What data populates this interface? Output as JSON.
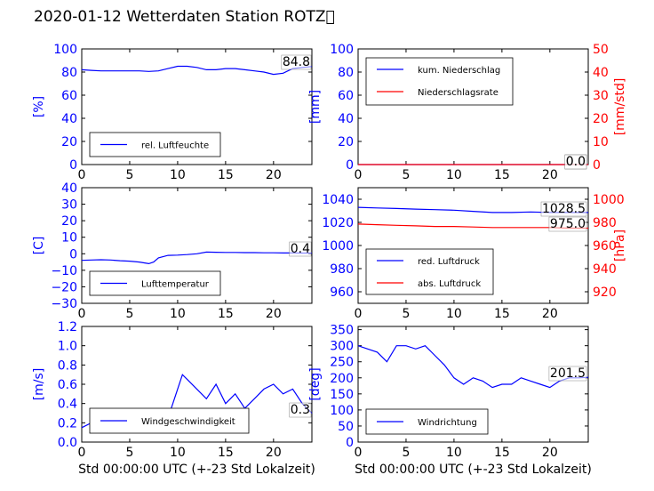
{
  "title": "2020-01-12 Wetterdaten Station ROTZ\u0000",
  "colors": {
    "primary": "#0000ff",
    "secondary": "#ff0000",
    "axis": "#000000"
  },
  "chart_data": [
    {
      "type": "line",
      "panel": "top-left",
      "ylabel": "[%]",
      "xlim": [
        0,
        24
      ],
      "ylim": [
        0,
        100
      ],
      "xticks": [
        "0",
        "5",
        "10",
        "15",
        "20"
      ],
      "yticks": [
        "0",
        "20",
        "40",
        "60",
        "80",
        "100"
      ],
      "legend_entries": [
        "rel. Luftfeuchte"
      ],
      "legend_position": "lower-left",
      "value_label": "84.8",
      "series": [
        {
          "name": "rel. Luftfeuchte",
          "color": "#0000ff",
          "x": [
            0,
            1,
            2,
            3,
            4,
            5,
            6,
            7,
            8,
            9,
            10,
            11,
            12,
            13,
            14,
            15,
            16,
            17,
            18,
            19,
            20,
            21,
            22,
            23,
            24
          ],
          "y": [
            82,
            81.5,
            81,
            81,
            81,
            81,
            81,
            80.5,
            81,
            83,
            85,
            85,
            84,
            82,
            82,
            83,
            83,
            82,
            81,
            80,
            78,
            79,
            83,
            84,
            84.8
          ]
        }
      ]
    },
    {
      "type": "line",
      "panel": "top-right",
      "ylabel": "[mm]",
      "ylabel_right": "[mm/std]",
      "xlim": [
        0,
        24
      ],
      "ylim": [
        0,
        100
      ],
      "ylim_right": [
        0,
        50
      ],
      "xticks": [
        "0",
        "5",
        "10",
        "15",
        "20"
      ],
      "yticks": [
        "0",
        "20",
        "40",
        "60",
        "80",
        "100"
      ],
      "yticks_right": [
        "0",
        "10",
        "20",
        "30",
        "40",
        "50"
      ],
      "legend_entries": [
        "kum. Niederschlag",
        "Niederschlagsrate"
      ],
      "legend_position": "upper-left",
      "value_labels": [
        "0.0",
        "0.0"
      ],
      "series": [
        {
          "name": "kum. Niederschlag",
          "color": "#0000ff",
          "axis": "left",
          "x": [
            0,
            24
          ],
          "y": [
            0,
            0
          ]
        },
        {
          "name": "Niederschlagsrate",
          "color": "#ff0000",
          "axis": "right",
          "x": [
            0,
            24
          ],
          "y": [
            0,
            0
          ]
        }
      ]
    },
    {
      "type": "line",
      "panel": "middle-left",
      "ylabel": "[C]",
      "xlim": [
        0,
        24
      ],
      "ylim": [
        -30,
        40
      ],
      "xticks": [
        "0",
        "5",
        "10",
        "15",
        "20"
      ],
      "yticks": [
        "−30",
        "−20",
        "−10",
        "0",
        "10",
        "20",
        "30",
        "40"
      ],
      "legend_entries": [
        "Lufttemperatur"
      ],
      "legend_position": "lower-left",
      "value_label": "0.4",
      "series": [
        {
          "name": "Lufttemperatur",
          "color": "#0000ff",
          "x": [
            0,
            1,
            2,
            3,
            4,
            5,
            6,
            6.5,
            7,
            7.5,
            8,
            9,
            10,
            11,
            12,
            13,
            14,
            15,
            16,
            17,
            18,
            19,
            20,
            21,
            22,
            23,
            24
          ],
          "y": [
            -4,
            -3.8,
            -3.6,
            -3.8,
            -4.2,
            -4.5,
            -5,
            -5.5,
            -6,
            -5,
            -2.5,
            -1,
            -0.8,
            -0.5,
            0,
            1,
            0.9,
            0.8,
            0.8,
            0.7,
            0.7,
            0.6,
            0.6,
            0.5,
            0.5,
            0.4,
            0.4
          ]
        }
      ]
    },
    {
      "type": "line",
      "panel": "middle-right",
      "ylim": [
        950,
        1050
      ],
      "ylim_right": [
        910,
        1010
      ],
      "xlim": [
        0,
        24
      ],
      "xticks": [
        "0",
        "5",
        "10",
        "15",
        "20"
      ],
      "yticks": [
        "960",
        "980",
        "1000",
        "1020",
        "1040"
      ],
      "yticks_right": [
        "920",
        "940",
        "960",
        "980",
        "1000"
      ],
      "ylabel_right": "[hPa]",
      "legend_entries": [
        "red. Luftdruck",
        "abs. Luftdruck"
      ],
      "legend_position": "lower-left",
      "value_labels": [
        "1028.5",
        "975.0"
      ],
      "series": [
        {
          "name": "red. Luftdruck",
          "color": "#0000ff",
          "axis": "left",
          "x": [
            0,
            2,
            4,
            6,
            8,
            10,
            12,
            14,
            16,
            18,
            20,
            22,
            24
          ],
          "y": [
            1033,
            1032.5,
            1032,
            1031.5,
            1031,
            1030.5,
            1029.5,
            1028.5,
            1028.5,
            1029,
            1028.5,
            1028.5,
            1028.5
          ]
        },
        {
          "name": "abs. Luftdruck",
          "color": "#ff0000",
          "axis": "right",
          "x": [
            0,
            2,
            4,
            6,
            8,
            10,
            12,
            14,
            16,
            18,
            20,
            22,
            24
          ],
          "y": [
            978.5,
            978,
            977.5,
            977,
            976.5,
            976.5,
            976,
            975.5,
            975.5,
            975.5,
            975.5,
            975,
            975
          ]
        }
      ]
    },
    {
      "type": "line",
      "panel": "bottom-left",
      "ylabel": "[m/s]",
      "xlabel": "Std 00:00:00 UTC (+-23 Std Lokalzeit)",
      "xlim": [
        0,
        24
      ],
      "ylim": [
        0,
        1.2
      ],
      "xticks": [
        "0",
        "5",
        "10",
        "15",
        "20"
      ],
      "yticks": [
        "0.0",
        "0.2",
        "0.4",
        "0.6",
        "0.8",
        "1.0",
        "1.2"
      ],
      "legend_entries": [
        "Windgeschwindigkeit"
      ],
      "legend_position": "lower-left",
      "value_label": "0.3",
      "series": [
        {
          "name": "Windgeschwindigkeit",
          "color": "#0000ff",
          "x": [
            0,
            1,
            2,
            3,
            4,
            5,
            6,
            7,
            8,
            9,
            10,
            10.5,
            11,
            12,
            13,
            14,
            15,
            16,
            17,
            18,
            19,
            20,
            21,
            22,
            23,
            24
          ],
          "y": [
            0.15,
            0.2,
            0.2,
            0.18,
            0.2,
            0.18,
            0.2,
            0.18,
            0.2,
            0.25,
            0.55,
            0.7,
            0.65,
            0.55,
            0.45,
            0.6,
            0.4,
            0.5,
            0.35,
            0.45,
            0.55,
            0.6,
            0.5,
            0.55,
            0.4,
            0.3
          ]
        }
      ]
    },
    {
      "type": "line",
      "panel": "bottom-right",
      "ylabel": "[deg]",
      "xlabel": "Std 00:00:00 UTC (+-23 Std Lokalzeit)",
      "xlim": [
        0,
        24
      ],
      "ylim": [
        0,
        360
      ],
      "xticks": [
        "0",
        "5",
        "10",
        "15",
        "20"
      ],
      "yticks": [
        "0",
        "50",
        "100",
        "150",
        "200",
        "250",
        "300",
        "350"
      ],
      "legend_entries": [
        "Windrichtung"
      ],
      "legend_position": "lower-left",
      "value_label": "201.5",
      "series": [
        {
          "name": "Windrichtung",
          "color": "#0000ff",
          "x": [
            0,
            1,
            2,
            3,
            4,
            5,
            6,
            7,
            8,
            9,
            10,
            11,
            12,
            13,
            14,
            15,
            16,
            17,
            18,
            19,
            20,
            21,
            22,
            23,
            24
          ],
          "y": [
            300,
            290,
            280,
            250,
            300,
            300,
            290,
            300,
            270,
            240,
            200,
            180,
            200,
            190,
            170,
            180,
            180,
            200,
            190,
            180,
            170,
            190,
            200,
            200,
            201.5
          ]
        }
      ]
    }
  ]
}
